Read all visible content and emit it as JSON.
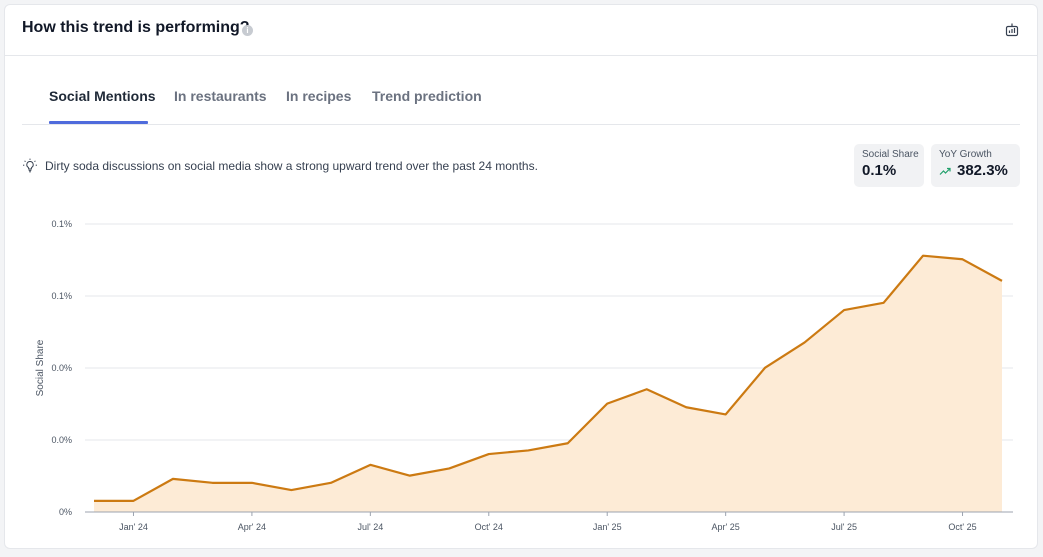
{
  "header": {
    "title": "How this trend is performing?",
    "info_icon": "info-icon",
    "export_icon": "chart-export-icon"
  },
  "tabs": [
    {
      "label": "Social Mentions",
      "active": true
    },
    {
      "label": "In restaurants",
      "active": false
    },
    {
      "label": "In recipes",
      "active": false
    },
    {
      "label": "Trend prediction",
      "active": false
    }
  ],
  "insight": {
    "icon": "lightbulb-icon",
    "text": "Dirty soda discussions on social media show a strong upward trend over the past 24 months."
  },
  "stats": {
    "social_share": {
      "label": "Social Share",
      "value": "0.1%"
    },
    "yoy_growth": {
      "label": "YoY Growth",
      "value": "382.3%",
      "icon": "trend-up-icon",
      "color": "#22a06b"
    }
  },
  "colors": {
    "accent": "#4f6bdc",
    "line": "#cc7a12",
    "area": "#fdebd6"
  },
  "chart_data": {
    "type": "area",
    "ylabel": "Social Share",
    "xlabel": "",
    "y_tick_labels": [
      "0%",
      "0.0%",
      "0.0%",
      "0.1%",
      "0.1%"
    ],
    "y_tick_values": [
      0,
      0.02,
      0.04,
      0.06,
      0.08
    ],
    "ylim": [
      0,
      0.08
    ],
    "grid": true,
    "x_tick_labels": [
      "Jan' 24",
      "Apr' 24",
      "Jul' 24",
      "Oct' 24",
      "Jan' 25",
      "Apr' 25",
      "Jul' 25",
      "Oct' 25"
    ],
    "x_tick_indices": [
      1,
      4,
      7,
      10,
      13,
      16,
      19,
      22
    ],
    "series": [
      {
        "values": [
          0.0031,
          0.0031,
          0.0092,
          0.0081,
          0.0081,
          0.0061,
          0.0081,
          0.0131,
          0.0101,
          0.0121,
          0.0161,
          0.0171,
          0.0191,
          0.0301,
          0.0341,
          0.0291,
          0.0271,
          0.0401,
          0.0471,
          0.0561,
          0.0581,
          0.0712,
          0.0702,
          0.0642
        ]
      }
    ]
  }
}
